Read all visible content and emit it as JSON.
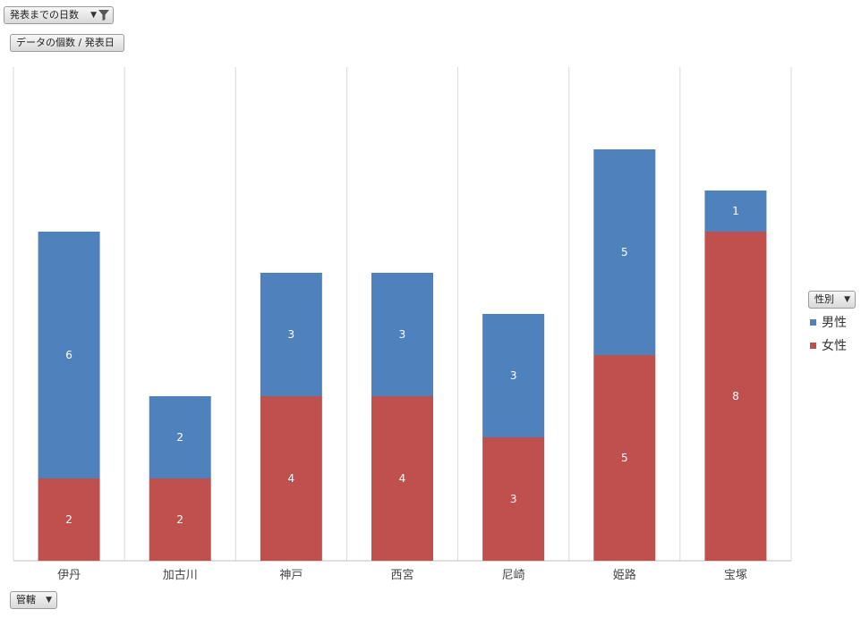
{
  "filter_field": {
    "label": "発表までの日数"
  },
  "values_field": {
    "label": "データの個数 / 発表日"
  },
  "axis_field": {
    "label": "管轄"
  },
  "legend_field": {
    "label": "性別"
  },
  "chart_data": {
    "type": "bar",
    "stacked": true,
    "categories": [
      "伊丹",
      "加古川",
      "神戸",
      "西宮",
      "尼崎",
      "姫路",
      "宝塚"
    ],
    "series": [
      {
        "name": "女性",
        "color": "#c0504d",
        "values": [
          2,
          2,
          4,
          4,
          3,
          5,
          8
        ]
      },
      {
        "name": "男性",
        "color": "#4f81bd",
        "values": [
          6,
          2,
          3,
          3,
          3,
          5,
          1
        ]
      }
    ],
    "legend_order": [
      "男性",
      "女性"
    ],
    "ylim": [
      0,
      12
    ],
    "grid": "vertical-category-separators",
    "legend_position": "right"
  }
}
